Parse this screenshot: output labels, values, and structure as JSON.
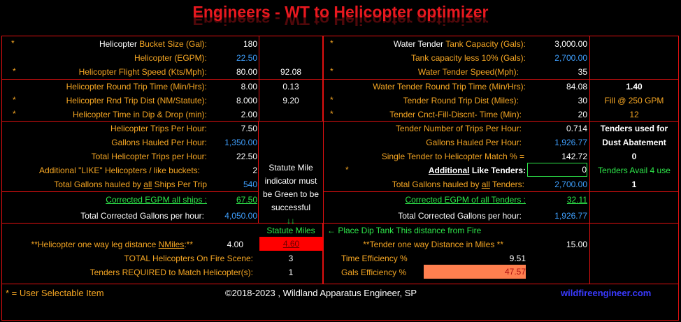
{
  "title": "Engineers - WT to Helicopter optimizer",
  "colors": {
    "orange": "#f5a623",
    "blue": "#3fa0ff",
    "green": "#2ee84a",
    "red": "#e8181f",
    "salmon": "#ff7f4f"
  },
  "star": "*",
  "heli": {
    "bucket_pre": "Helicopter ",
    "bucket_lbl": "Bucket Size (Gal):",
    "bucket_val": "180",
    "egpm_pre": "Helicopter ",
    "egpm_lbl": "(EGPM):",
    "egpm_val": "22.50",
    "speed_lbl": "Helicopter Flight Speed (Kts/Mph):",
    "speed_kts": "80.00",
    "speed_mph": "92.08",
    "rtt_lbl": "Helicopter Round Trip Time (Min/Hrs):",
    "rtt_min": "8.00",
    "rtt_hrs": "0.13",
    "rtd_lbl": "Helicopter Rnd Trip Dist  (NM/Statute):",
    "rtd_nm": "8.000",
    "rtd_st": "9.20",
    "dip_lbl": "Helicopter Time in Dip & Drop (min):",
    "dip_val": "2.00",
    "trips_lbl": "Helicopter Trips Per Hour:",
    "trips_val": "7.50",
    "gph_lbl": "Gallons Hauled Per Hour:",
    "gph_val": "1,350.00",
    "total_trips_lbl": "Total Helicopter Trips per Hour:",
    "total_trips_val": "22.50",
    "add_lbl": "Additional \"LIKE\" Helicopters / like buckets:",
    "add_val": "2",
    "tg_pre": "Total Gallons hauled by ",
    "tg_all": "all",
    "tg_post": " Ships Per Trip",
    "tg_val": "540",
    "cegpm_lbl": "Corrected EGPM all ships :",
    "cegpm_val": "67.50",
    "tcg_lbl": "Total Corrected Gallons per hour:",
    "tcg_val": "4,050.00"
  },
  "wt": {
    "cap_pre": "Water Tender ",
    "cap_lbl": "Tank Capacity (Gals):",
    "cap_val": "3,000.00",
    "less_lbl": "Tank capacity less 10% (Gals):",
    "less_val": "2,700.00",
    "speed_lbl": "Water Tender Speed(Mph):",
    "speed_val": "35",
    "rtt_lbl": "Water Tender Round Trip Time (Min/Hrs):",
    "rtt_min": "84.08",
    "rtt_hrs": "1.40",
    "rtd_lbl": "Tender Round Trip Dist (Miles):",
    "rtd_val": "30",
    "fill_lbl": "Fill @ 250 GPM",
    "cnct_lbl": "Tender Cnct-Fill-Discnt- Time (Min):",
    "cnct_val": "20",
    "fill_val": "12",
    "trips_lbl": "Tender Number of Trips Per Hour:",
    "trips_val": "0.714",
    "gph_lbl": "Gallons Hauled Per Hour:",
    "gph_val": "1,926.77",
    "match_lbl": "Single Tender to Helicopter Match % =",
    "match_val": "142.72",
    "add_u": "Additional",
    "add_lbl": " Like Tenders:",
    "add_val": "0",
    "tg_pre": "Total Gallons hauled by ",
    "tg_all": "all",
    "tg_post": " Tenders:",
    "tg_val": "2,700.00",
    "cegpm_lbl": "Corrected EGPM of all Tenders :",
    "cegpm_val": "32.11",
    "tcg_lbl": "Total Corrected Gallons per hour:",
    "tcg_val": "1,926.77"
  },
  "dust": {
    "lbl1": "Tenders used for",
    "lbl2": "Dust Abatement",
    "val": "0",
    "avail_lbl": "Tenders Avail 4 use",
    "avail_val": "1"
  },
  "note": {
    "l1": "Statute Mile",
    "l2": "indicator must",
    "l3": "be Green to be",
    "l4": "successful",
    "arrows": "↓↓"
  },
  "bottom": {
    "statute_lbl": "Statute Miles",
    "dip_tank_lbl": "←  Place Dip Tank This distance from Fire",
    "leg_pre": "**Helicopter one way leg distance ",
    "leg_u": "NMiles",
    "leg_post": ":**",
    "leg_val": "4.00",
    "leg_st": "4.60",
    "tender_lbl": "**Tender one way Distance in Miles **",
    "tender_val": "15.00",
    "total_heli_lbl": "TOTAL Helicopters On Fire Scene:",
    "total_heli_val": "3",
    "req_lbl": "Tenders REQUIRED to Match Helicopter(s):",
    "req_val": "1",
    "time_eff_lbl": "Time Efficiency %",
    "time_eff_val": "9.51",
    "gals_eff_lbl": "Gals Efficiency  %",
    "gals_eff_val": "47.57"
  },
  "footer": {
    "legend": "*  = User Selectable Item",
    "copyright": "©2018-2023 ,  Wildland Apparatus Engineer, SP",
    "site": "wildfireengineer.com"
  }
}
